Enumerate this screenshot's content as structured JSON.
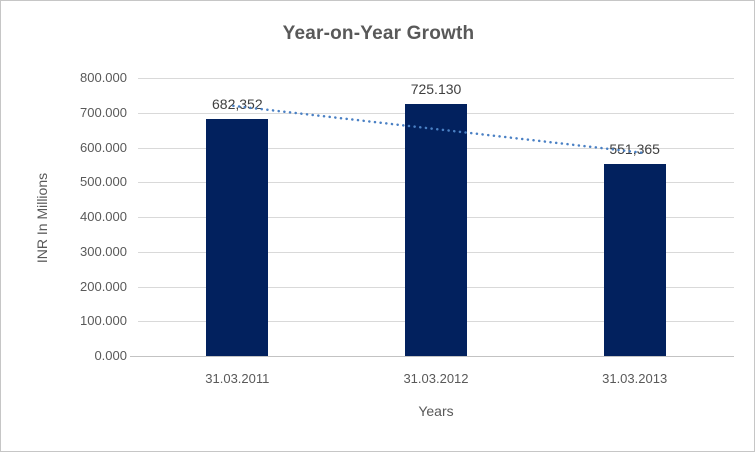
{
  "chart": {
    "colors": {
      "bar_fill": "#02215e",
      "trendline": "#4a80c4",
      "gridline": "#d9d9d9",
      "axis_line": "#c3c3c3",
      "title_text": "#595959",
      "axis_text": "#595959",
      "data_label_text": "#404040"
    }
  },
  "chart_data": {
    "type": "bar",
    "title": "Year-on-Year Growth",
    "xlabel": "Years",
    "ylabel": "INR In Millions",
    "categories": [
      "31.03.2011",
      "31.03.2012",
      "31.03.2013"
    ],
    "values": [
      682.352,
      725.13,
      551.365
    ],
    "data_labels": [
      "682,352",
      "725.130",
      "551,365"
    ],
    "ylim": [
      0,
      800
    ],
    "y_tick_step": 100,
    "y_tick_labels": [
      "0.000",
      "100.000",
      "200.000",
      "300.000",
      "400.000",
      "500.000",
      "600.000",
      "700.000",
      "800.000"
    ],
    "grid": true,
    "legend": "none",
    "trendline": {
      "type": "linear",
      "style": "dotted"
    }
  }
}
